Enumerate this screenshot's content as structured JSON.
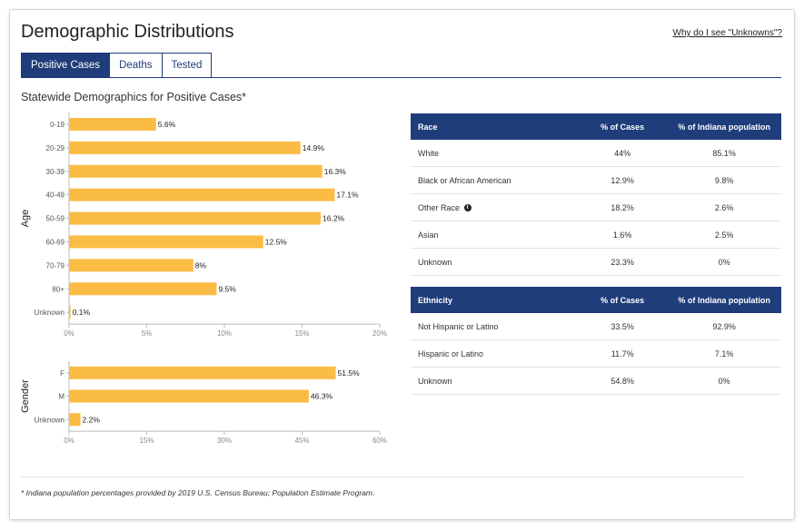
{
  "header": {
    "title": "Demographic Distributions",
    "why_link": "Why do I see \"Unknowns\"?"
  },
  "tabs": [
    {
      "label": "Positive Cases",
      "active": true
    },
    {
      "label": "Deaths",
      "active": false
    },
    {
      "label": "Tested",
      "active": false
    }
  ],
  "subtitle": "Statewide Demographics for Positive Cases*",
  "colors": {
    "accent": "#1f3d7a",
    "bar": "#fbbc45"
  },
  "chart_data": [
    {
      "type": "bar",
      "orientation": "horizontal",
      "ylabel": "Age",
      "categories": [
        "0-19",
        "20-29",
        "30-39",
        "40-49",
        "50-59",
        "60-69",
        "70-79",
        "80+",
        "Unknown"
      ],
      "values": [
        5.6,
        14.9,
        16.3,
        17.1,
        16.2,
        12.5,
        8,
        9.5,
        0.1
      ],
      "value_labels": [
        "5.6%",
        "14.9%",
        "16.3%",
        "17.1%",
        "16.2%",
        "12.5%",
        "8%",
        "9.5%",
        "0.1%"
      ],
      "xticks": [
        0,
        5,
        10,
        15,
        20
      ],
      "xtick_labels": [
        "0%",
        "5%",
        "10%",
        "15%",
        "20%"
      ],
      "xlim": [
        0,
        20
      ]
    },
    {
      "type": "bar",
      "orientation": "horizontal",
      "ylabel": "Gender",
      "categories": [
        "F",
        "M",
        "Unknown"
      ],
      "values": [
        51.5,
        46.3,
        2.2
      ],
      "value_labels": [
        "51.5%",
        "46.3%",
        "2.2%"
      ],
      "xticks": [
        0,
        15,
        30,
        45,
        60
      ],
      "xtick_labels": [
        "0%",
        "15%",
        "30%",
        "45%",
        "60%"
      ],
      "xlim": [
        0,
        60
      ]
    },
    {
      "type": "table",
      "columns": [
        "Race",
        "% of Cases",
        "% of Indiana population"
      ],
      "rows": [
        {
          "label": "White",
          "cases": "44%",
          "pop": "85.1%"
        },
        {
          "label": "Black or African American",
          "cases": "12.9%",
          "pop": "9.8%"
        },
        {
          "label": "Other Race",
          "cases": "18.2%",
          "pop": "2.6%"
        },
        {
          "label": "Asian",
          "cases": "1.6%",
          "pop": "2.5%"
        },
        {
          "label": "Unknown",
          "cases": "23.3%",
          "pop": "0%"
        }
      ]
    },
    {
      "type": "table",
      "columns": [
        "Ethnicity",
        "% of Cases",
        "% of Indiana population"
      ],
      "rows": [
        {
          "label": "Not Hispanic or Latino",
          "cases": "33.5%",
          "pop": "92.9%"
        },
        {
          "label": "Hispanic or Latino",
          "cases": "11.7%",
          "pop": "7.1%"
        },
        {
          "label": "Unknown",
          "cases": "54.8%",
          "pop": "0%"
        }
      ]
    }
  ],
  "footnote": "* Indiana population percentages provided by 2019 U.S. Census Bureau; Population Estimate Program."
}
